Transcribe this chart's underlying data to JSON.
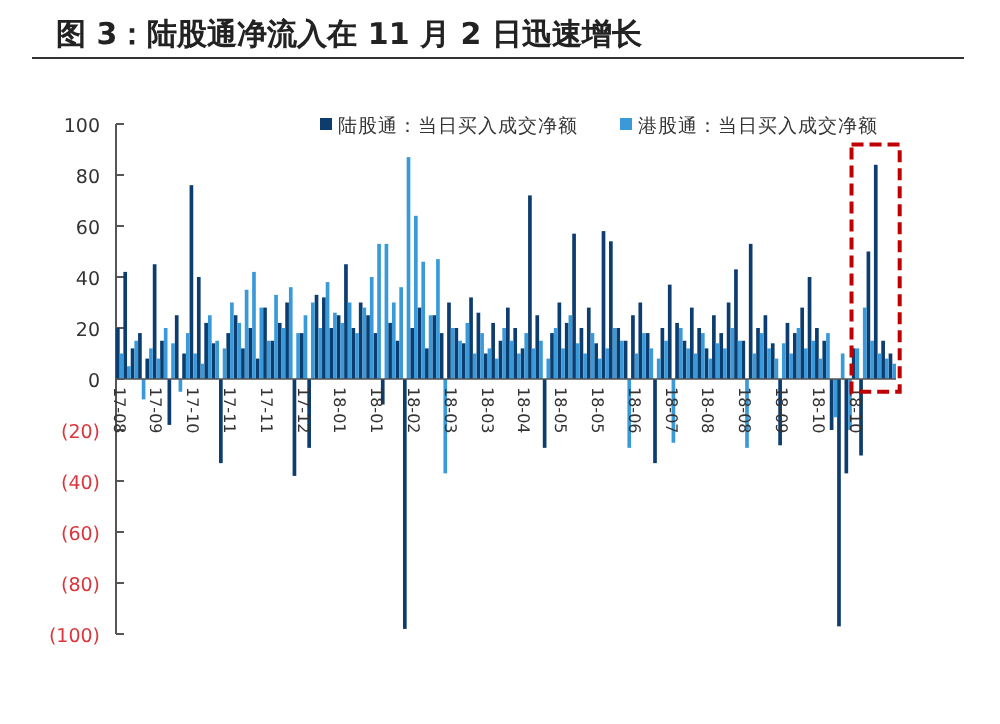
{
  "chart_data": {
    "type": "bar",
    "title": "图 3：陆股通净流入在 11 月 2 日迅速增长",
    "categories": [
      "17-08",
      null,
      null,
      null,
      null,
      "17-09",
      null,
      null,
      null,
      null,
      "17-10",
      null,
      null,
      null,
      null,
      "17-11",
      null,
      null,
      null,
      null,
      "17-11",
      null,
      null,
      null,
      null,
      "17-12",
      null,
      null,
      null,
      null,
      "18-01",
      null,
      null,
      null,
      null,
      "18-01",
      null,
      null,
      null,
      null,
      "18-02",
      null,
      null,
      null,
      null,
      "18-03",
      null,
      null,
      null,
      null,
      "18-03",
      null,
      null,
      null,
      null,
      "18-04",
      null,
      null,
      null,
      null,
      "18-05",
      null,
      null,
      null,
      null,
      "18-05",
      null,
      null,
      null,
      null,
      "18-06",
      null,
      null,
      null,
      null,
      "18-07",
      null,
      null,
      null,
      null,
      "18-08",
      null,
      null,
      null,
      null,
      "18-08",
      null,
      null,
      null,
      null,
      "18-09",
      null,
      null,
      null,
      null,
      "18-10",
      null,
      null,
      null,
      null,
      "18-10",
      null,
      null,
      null,
      null,
      null
    ],
    "series": [
      {
        "name": "陆股通：当日买入成交净额",
        "color": "#0d3c6e",
        "values": [
          20,
          42,
          12,
          18,
          8,
          45,
          15,
          -18,
          25,
          10,
          76,
          40,
          22,
          14,
          -33,
          18,
          25,
          12,
          20,
          8,
          28,
          15,
          22,
          30,
          -38,
          18,
          -27,
          33,
          32,
          20,
          25,
          45,
          20,
          30,
          25,
          18,
          -10,
          22,
          15,
          -98,
          20,
          28,
          12,
          25,
          18,
          30,
          20,
          14,
          32,
          26,
          10,
          22,
          15,
          28,
          20,
          12,
          72,
          25,
          -27,
          18,
          30,
          22,
          57,
          20,
          28,
          14,
          58,
          54,
          20,
          15,
          25,
          30,
          18,
          -33,
          20,
          37,
          22,
          15,
          28,
          20,
          12,
          25,
          18,
          30,
          43,
          15,
          53,
          20,
          25,
          14,
          -26,
          22,
          18,
          28,
          40,
          20,
          15,
          -20,
          -97,
          -37,
          12,
          -30,
          50,
          84,
          15,
          10
        ]
      },
      {
        "name": "港股通：当日买入成交净额",
        "color": "#3a9ad9",
        "values": [
          10,
          5,
          15,
          -8,
          12,
          8,
          20,
          14,
          -5,
          18,
          10,
          6,
          25,
          15,
          12,
          30,
          22,
          35,
          42,
          28,
          15,
          33,
          20,
          36,
          18,
          25,
          30,
          20,
          38,
          26,
          22,
          30,
          18,
          28,
          40,
          53,
          53,
          30,
          36,
          87,
          64,
          46,
          25,
          47,
          -37,
          20,
          15,
          22,
          10,
          18,
          12,
          8,
          20,
          15,
          10,
          18,
          12,
          15,
          8,
          20,
          12,
          25,
          14,
          10,
          18,
          8,
          12,
          20,
          15,
          -27,
          10,
          18,
          12,
          8,
          15,
          -25,
          20,
          12,
          10,
          18,
          8,
          14,
          12,
          20,
          15,
          -27,
          10,
          18,
          12,
          8,
          14,
          10,
          20,
          12,
          15,
          8,
          18,
          -15,
          10,
          -20,
          12,
          28,
          15,
          10,
          8,
          6
        ]
      }
    ],
    "ylim": [
      -100,
      100
    ],
    "yticks": [
      {
        "value": -100,
        "label": "(100)"
      },
      {
        "value": -80,
        "label": "(80)"
      },
      {
        "value": -60,
        "label": "(60)"
      },
      {
        "value": -40,
        "label": "(40)"
      },
      {
        "value": -20,
        "label": "(20)"
      },
      0,
      20,
      40,
      60,
      80,
      100
    ],
    "grid": false,
    "legend": "top"
  }
}
